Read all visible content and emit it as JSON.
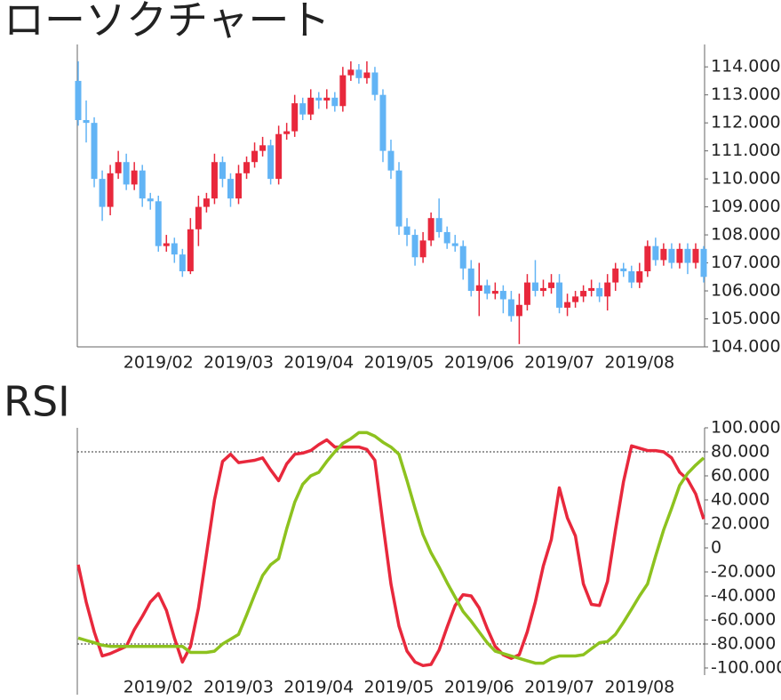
{
  "chart_data": [
    {
      "type": "candlestick",
      "title": "ローソクチャート",
      "categories": [
        null,
        null,
        null,
        null,
        null,
        null,
        null,
        null,
        null,
        null,
        "2019/02",
        null,
        null,
        null,
        null,
        null,
        null,
        null,
        null,
        null,
        "2019/03",
        null,
        null,
        null,
        null,
        null,
        null,
        null,
        null,
        null,
        "2019/04",
        null,
        null,
        null,
        null,
        null,
        null,
        null,
        null,
        null,
        "2019/05",
        null,
        null,
        null,
        null,
        null,
        null,
        null,
        null,
        null,
        "2019/06",
        null,
        null,
        null,
        null,
        null,
        null,
        null,
        null,
        null,
        "2019/07",
        null,
        null,
        null,
        null,
        null,
        null,
        null,
        null,
        null,
        "2019/08",
        null,
        null,
        null,
        null,
        null,
        null,
        null,
        null
      ],
      "open": [
        113.5,
        112.1,
        112.0,
        110.0,
        109.0,
        110.2,
        110.6,
        109.8,
        110.3,
        109.3,
        109.2,
        107.6,
        107.7,
        107.3,
        106.7,
        108.2,
        109.0,
        109.3,
        110.6,
        110.0,
        109.3,
        110.2,
        110.6,
        111.0,
        111.2,
        110.0,
        111.6,
        111.7,
        112.7,
        112.3,
        112.9,
        112.8,
        112.9,
        112.6,
        113.7,
        113.9,
        113.6,
        113.8,
        113.0,
        111.0,
        110.3,
        108.3,
        108.0,
        107.2,
        107.8,
        108.6,
        108.1,
        107.7,
        107.6,
        106.8,
        106.0,
        106.2,
        105.9,
        106.0,
        105.7,
        105.1,
        105.5,
        106.3,
        106.0,
        106.1,
        106.3,
        105.4,
        105.6,
        105.8,
        106.0,
        106.1,
        105.8,
        106.3,
        106.8,
        106.7,
        106.3,
        106.7,
        107.6,
        107.1,
        107.5,
        107.0,
        107.5,
        107.0,
        107.5
      ],
      "high": [
        114.2,
        112.8,
        112.2,
        110.3,
        110.5,
        111.0,
        110.9,
        110.6,
        110.5,
        109.5,
        109.4,
        108.0,
        107.9,
        107.5,
        108.6,
        109.4,
        109.5,
        110.9,
        110.8,
        110.2,
        110.5,
        110.8,
        111.3,
        111.5,
        111.4,
        111.9,
        112.0,
        113.0,
        112.9,
        113.2,
        113.1,
        113.2,
        113.1,
        114.0,
        114.2,
        114.1,
        114.2,
        114.0,
        113.2,
        111.4,
        110.6,
        108.6,
        108.2,
        108.1,
        108.8,
        109.3,
        108.3,
        108.0,
        107.8,
        107.1,
        107.0,
        106.4,
        106.3,
        106.2,
        106.0,
        105.9,
        106.6,
        107.1,
        106.4,
        106.6,
        106.6,
        105.9,
        106.0,
        106.2,
        106.4,
        106.3,
        106.6,
        107.0,
        107.0,
        106.9,
        107.0,
        107.8,
        107.9,
        107.7,
        107.7,
        107.7,
        107.7,
        107.7,
        107.6
      ],
      "low": [
        111.9,
        111.3,
        109.7,
        108.5,
        108.7,
        110.0,
        109.6,
        109.6,
        109.0,
        108.9,
        107.4,
        107.4,
        107.0,
        106.5,
        106.6,
        107.6,
        108.8,
        109.1,
        109.7,
        109.0,
        109.1,
        110.0,
        110.4,
        110.8,
        109.8,
        109.8,
        111.4,
        111.5,
        112.1,
        112.1,
        112.5,
        112.5,
        112.4,
        112.4,
        113.5,
        113.4,
        113.4,
        112.8,
        110.6,
        110.0,
        108.0,
        107.6,
        106.9,
        107.0,
        107.6,
        107.9,
        107.5,
        107.4,
        106.4,
        105.8,
        105.1,
        105.7,
        105.7,
        105.2,
        104.9,
        104.1,
        105.3,
        105.8,
        105.8,
        105.9,
        105.2,
        105.1,
        105.4,
        105.6,
        105.8,
        105.6,
        105.3,
        106.0,
        106.5,
        106.1,
        106.1,
        106.5,
        106.9,
        106.9,
        106.8,
        106.8,
        106.6,
        106.8,
        106.3
      ],
      "close": [
        112.1,
        112.0,
        110.0,
        109.0,
        110.2,
        110.6,
        109.8,
        110.3,
        109.3,
        109.2,
        107.6,
        107.7,
        107.3,
        106.7,
        108.2,
        109.0,
        109.3,
        110.6,
        110.0,
        109.3,
        110.2,
        110.6,
        111.0,
        111.2,
        110.0,
        111.6,
        111.7,
        112.7,
        112.3,
        112.9,
        112.8,
        112.9,
        112.6,
        113.7,
        113.9,
        113.6,
        113.8,
        113.0,
        111.0,
        110.3,
        108.3,
        108.0,
        107.2,
        107.8,
        108.6,
        108.1,
        107.7,
        107.6,
        106.8,
        106.0,
        106.2,
        105.9,
        106.0,
        105.7,
        105.1,
        105.5,
        106.3,
        106.0,
        106.1,
        106.3,
        105.4,
        105.6,
        105.8,
        106.0,
        106.1,
        105.8,
        106.3,
        106.8,
        106.7,
        106.3,
        106.7,
        107.6,
        107.1,
        107.5,
        107.0,
        107.5,
        107.0,
        107.5,
        106.5
      ],
      "up_color": "#e8283c",
      "down_color": "#62b4f5",
      "ylim": [
        104,
        114.8
      ],
      "yticks": [
        {
          "value": 104,
          "label": "104.000"
        },
        {
          "value": 105,
          "label": "105.000"
        },
        {
          "value": 106,
          "label": "106.000"
        },
        {
          "value": 107,
          "label": "107.000"
        },
        {
          "value": 108,
          "label": "108.000"
        },
        {
          "value": 109,
          "label": "109.000"
        },
        {
          "value": 110,
          "label": "110.000"
        },
        {
          "value": 111,
          "label": "111.000"
        },
        {
          "value": 112,
          "label": "112.000"
        },
        {
          "value": 113,
          "label": "113.000"
        },
        {
          "value": 114,
          "label": "114.000"
        }
      ]
    },
    {
      "type": "line",
      "title": "RSI",
      "categories": [
        null,
        null,
        null,
        null,
        null,
        null,
        null,
        null,
        null,
        null,
        "2019/02",
        null,
        null,
        null,
        null,
        null,
        null,
        null,
        null,
        null,
        "2019/03",
        null,
        null,
        null,
        null,
        null,
        null,
        null,
        null,
        null,
        "2019/04",
        null,
        null,
        null,
        null,
        null,
        null,
        null,
        null,
        null,
        "2019/05",
        null,
        null,
        null,
        null,
        null,
        null,
        null,
        null,
        null,
        "2019/06",
        null,
        null,
        null,
        null,
        null,
        null,
        null,
        null,
        null,
        "2019/07",
        null,
        null,
        null,
        null,
        null,
        null,
        null,
        null,
        null,
        "2019/08",
        null,
        null,
        null,
        null,
        null,
        null,
        null,
        null
      ],
      "series": [
        {
          "color": "#e8283c",
          "values": [
            -14,
            -45,
            -70,
            -90,
            -88,
            -85,
            -82,
            -68,
            -57,
            -45,
            -38,
            -52,
            -75,
            -95,
            -82,
            -50,
            -5,
            40,
            72,
            78,
            71,
            72,
            73,
            75,
            65,
            56,
            70,
            78,
            79,
            81,
            86,
            90,
            84,
            84,
            84,
            84,
            82,
            73,
            20,
            -30,
            -65,
            -86,
            -95,
            -98,
            -97,
            -85,
            -66,
            -48,
            -39,
            -40,
            -50,
            -67,
            -82,
            -89,
            -92,
            -89,
            -70,
            -45,
            -15,
            7,
            50,
            25,
            10,
            -30,
            -47,
            -48,
            -28,
            15,
            55,
            85,
            83,
            81,
            81,
            80,
            75,
            63,
            57,
            45,
            24
          ]
        },
        {
          "color": "#8dc21f",
          "values": [
            -75,
            -77,
            -79,
            -81,
            -82,
            -82,
            -82,
            -82,
            -82,
            -82,
            -82,
            -82,
            -82,
            -82,
            -87,
            -87,
            -87,
            -86,
            -80,
            -76,
            -72,
            -56,
            -39,
            -23,
            -14,
            -9,
            16,
            38,
            53,
            60,
            63,
            72,
            80,
            87,
            91,
            96,
            96,
            93,
            88,
            84,
            78,
            56,
            33,
            11,
            -4,
            -16,
            -29,
            -41,
            -53,
            -61,
            -70,
            -79,
            -86,
            -88,
            -90,
            -92,
            -94,
            -96,
            -96,
            -92,
            -90,
            -90,
            -90,
            -89,
            -84,
            -79,
            -78,
            -72,
            -62,
            -51,
            -40,
            -30,
            -7,
            15,
            33,
            52,
            62,
            69,
            75
          ]
        }
      ],
      "hlines": [
        80,
        -80
      ],
      "ylim": [
        -100,
        100
      ],
      "yticks": [
        {
          "value": 100,
          "label": "100.000"
        },
        {
          "value": 80,
          "label": "80.000"
        },
        {
          "value": 60,
          "label": "60.000"
        },
        {
          "value": 40,
          "label": "40.000"
        },
        {
          "value": 20,
          "label": "20.000"
        },
        0,
        {
          "value": -20,
          "label": "-20.000"
        },
        {
          "value": -40,
          "label": "-40.000"
        },
        {
          "value": -60,
          "label": "-60.000"
        },
        {
          "value": -80,
          "label": "-80.000"
        },
        {
          "value": -100,
          "label": "-100.000"
        }
      ]
    }
  ]
}
